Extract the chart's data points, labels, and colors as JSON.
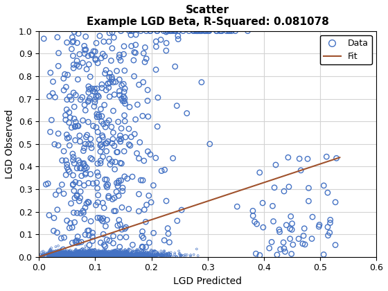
{
  "title_line1": "Scatter",
  "title_line2": "Example LGD Beta, R-Squared: 0.081078",
  "xlabel": "LGD Predicted",
  "ylabel": "LGD Observed",
  "xlim": [
    0,
    0.6
  ],
  "ylim": [
    0,
    1
  ],
  "xticks": [
    0,
    0.1,
    0.2,
    0.3,
    0.4,
    0.5,
    0.6
  ],
  "yticks": [
    0,
    0.1,
    0.2,
    0.3,
    0.4,
    0.5,
    0.6,
    0.7,
    0.8,
    0.9,
    1.0
  ],
  "scatter_color": "#4472C4",
  "fit_color": "#A0522D",
  "fit_x": [
    0.0,
    0.535
  ],
  "fit_y": [
    0.0,
    0.44
  ],
  "random_seed": 42,
  "marker_size_large": 28,
  "marker_size_dense": 4,
  "marker_linewidth": 1.0,
  "background_color": "#ffffff",
  "grid_color": "#d3d3d3",
  "title_fontsize": 11,
  "label_fontsize": 10,
  "legend_loc": "upper right"
}
